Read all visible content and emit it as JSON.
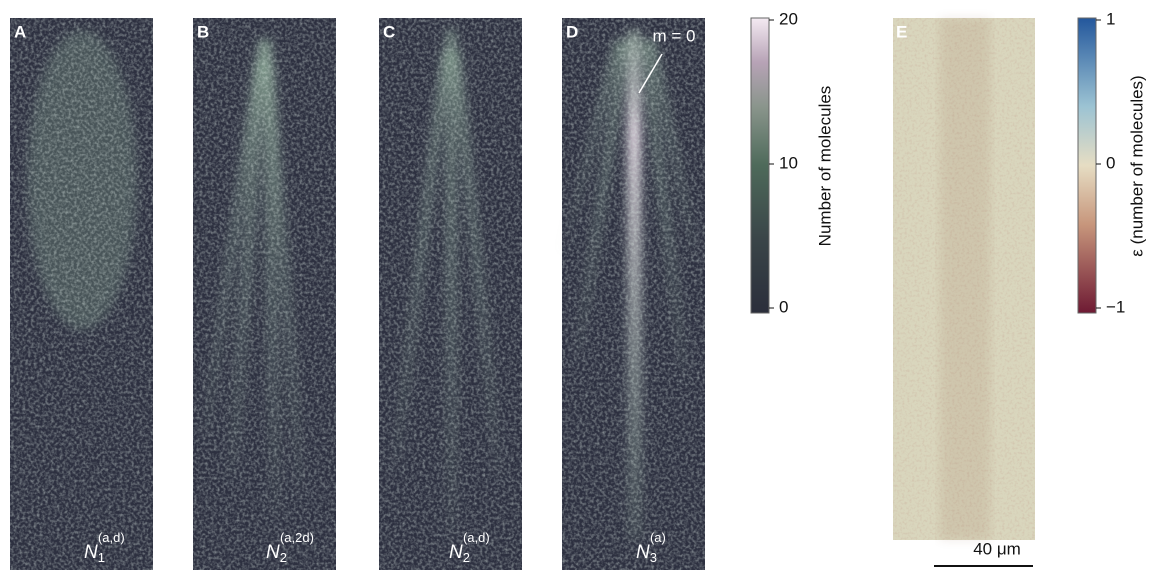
{
  "panels": [
    {
      "letter": "A",
      "label": {
        "symbol": "N",
        "sub": "1",
        "sup": "(a,d)"
      }
    },
    {
      "letter": "B",
      "label": {
        "symbol": "N",
        "sub": "2",
        "sup": "(a,2d)"
      }
    },
    {
      "letter": "C",
      "label": {
        "symbol": "N",
        "sub": "2",
        "sup": "(a,d)"
      }
    },
    {
      "letter": "D",
      "label": {
        "symbol": "N",
        "sub": "3",
        "sup": "(a)"
      },
      "annotation": "m = 0"
    },
    {
      "letter": "E",
      "scale_bar": "40 μm"
    }
  ],
  "colorbars": [
    {
      "label": "Number of molecules",
      "lim": [
        0,
        20
      ],
      "ticks": [
        0,
        10,
        20
      ]
    },
    {
      "label": "ε (number of molecules)",
      "lim": [
        -1,
        1
      ],
      "ticks": [
        {
          "value": -1,
          "label": "−1"
        },
        0,
        1
      ]
    }
  ]
}
